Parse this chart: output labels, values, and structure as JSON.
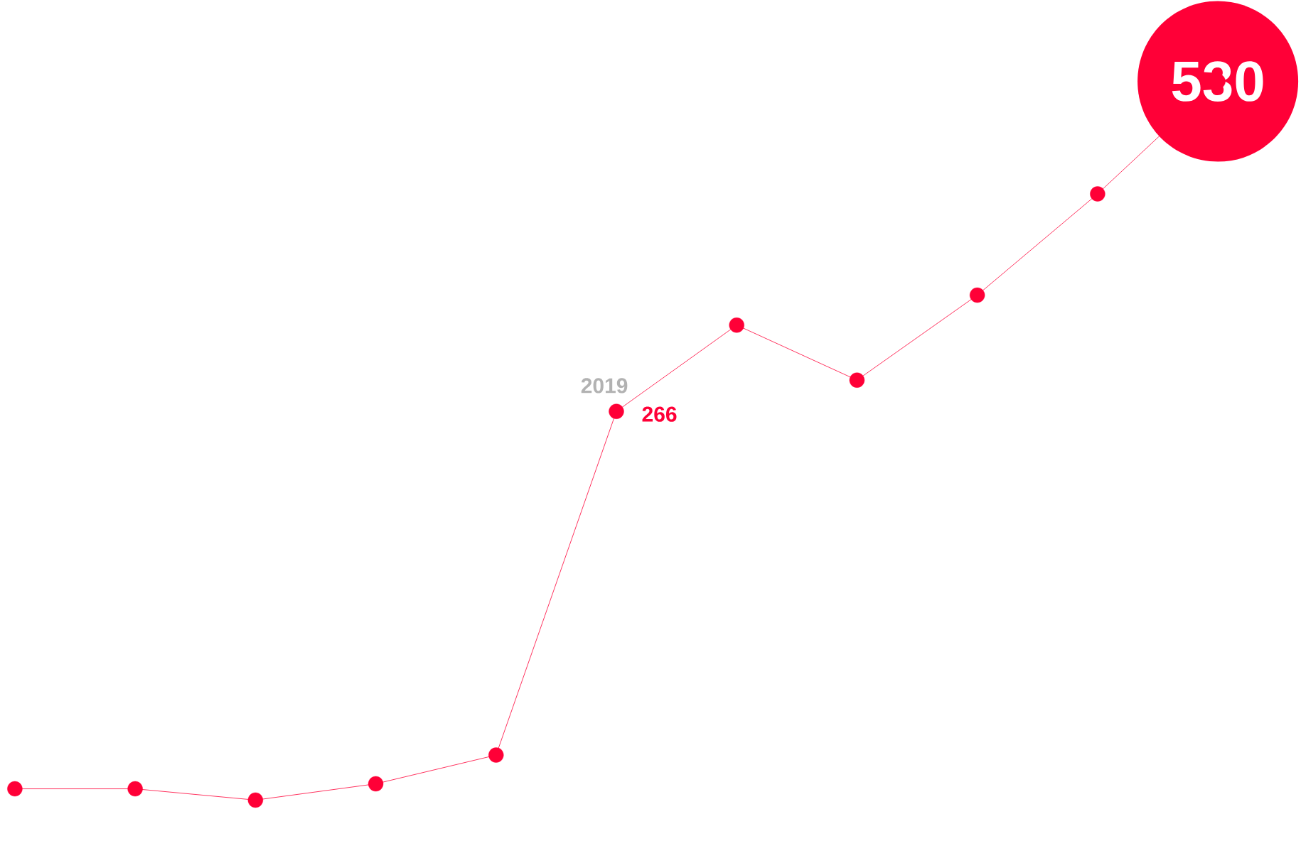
{
  "chart_data": {
    "type": "line",
    "categories": [
      null,
      null,
      null,
      null,
      null,
      null,
      null,
      null,
      null,
      null,
      null
    ],
    "series": [
      {
        "color": "#ff0037",
        "values": [
          -36,
          -36,
          -45,
          -32,
          -9,
          266,
          335,
          291,
          359,
          440,
          530
        ],
        "value_labels": [
          null,
          null,
          null,
          null,
          null,
          "266",
          null,
          null,
          null,
          null,
          "530"
        ]
      }
    ],
    "marker": "circle",
    "line_style": "solid",
    "annotations": [
      "2019"
    ]
  }
}
